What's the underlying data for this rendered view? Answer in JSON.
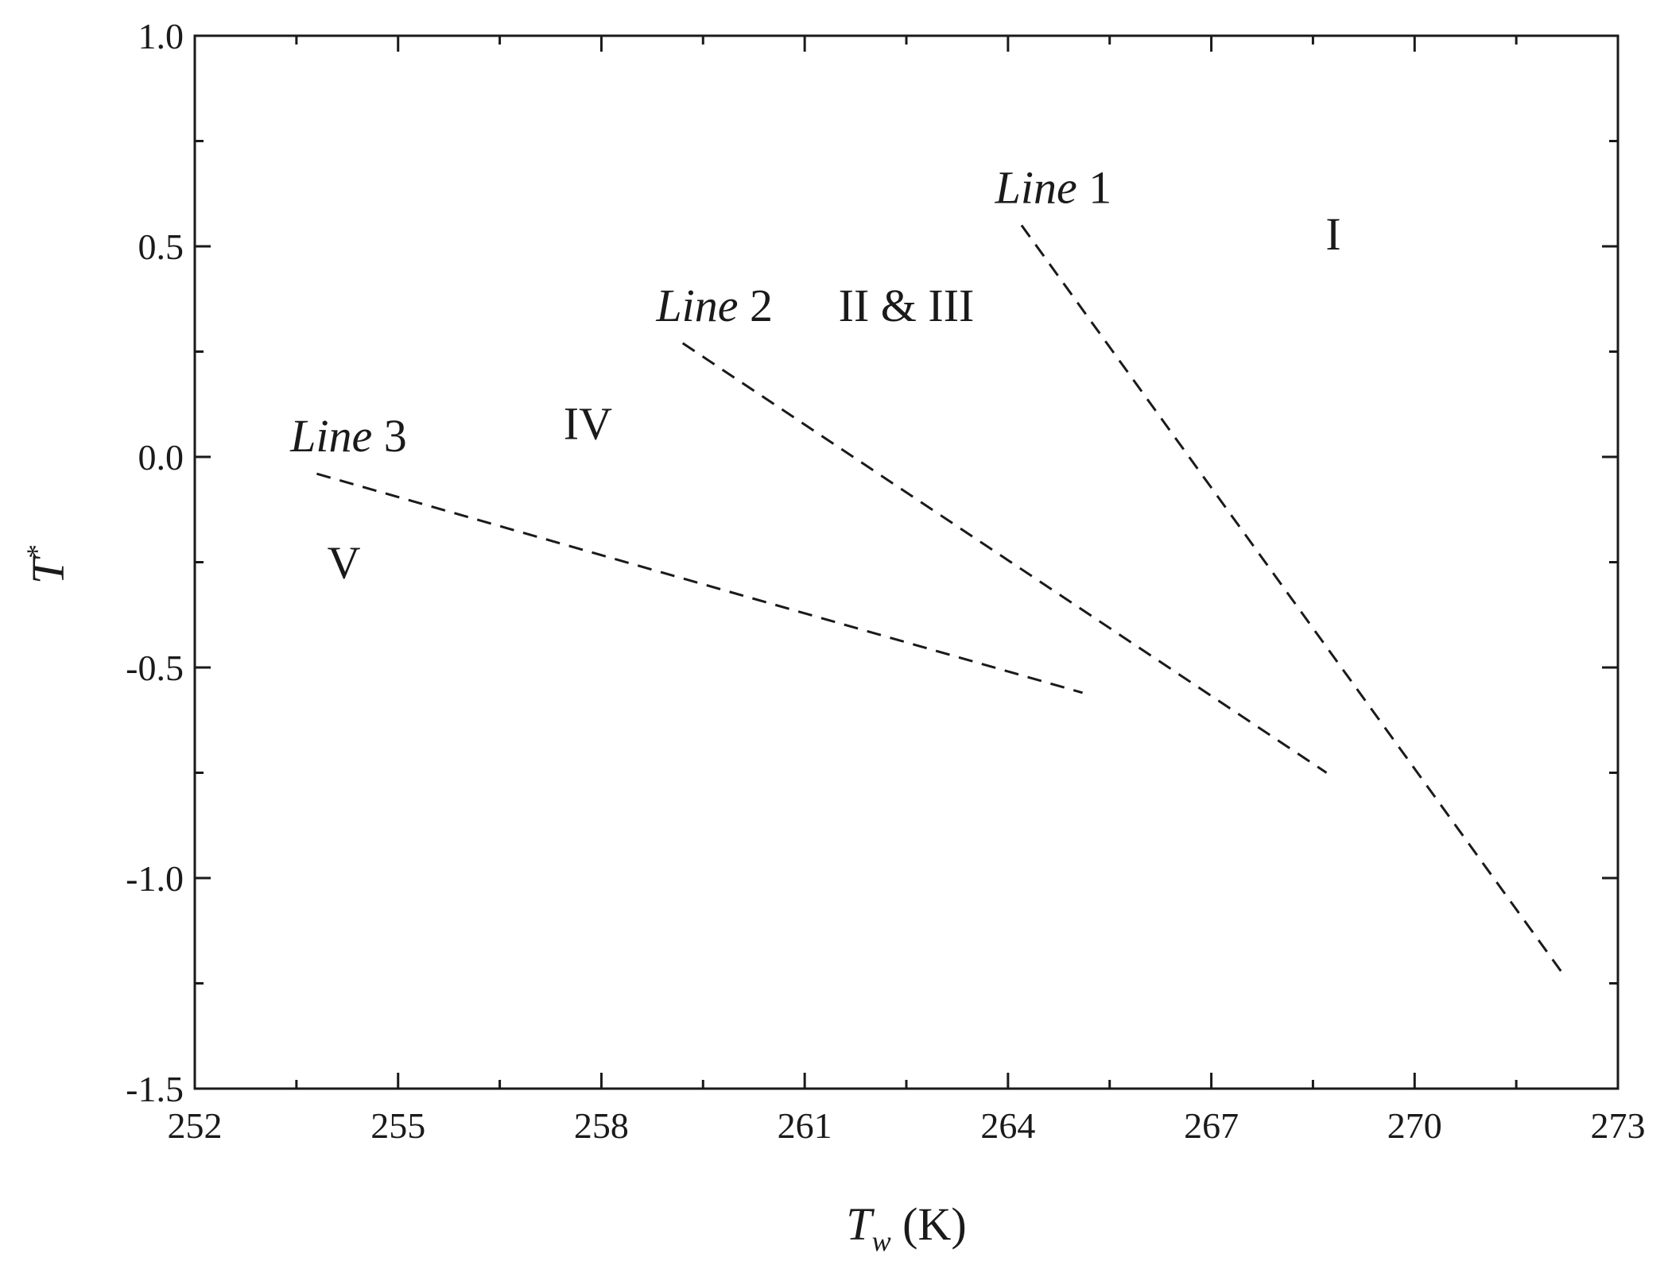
{
  "chart_data": {
    "type": "line",
    "title": "",
    "xlabel": {
      "symbol": "T",
      "subscript": "w",
      "unit": " (K)"
    },
    "ylabel": {
      "symbol": "T",
      "superscript": "*"
    },
    "xlim": [
      252,
      273
    ],
    "ylim": [
      -1.5,
      1.0
    ],
    "x_ticks": [
      "252",
      "255",
      "258",
      "261",
      "264",
      "267",
      "270",
      "273"
    ],
    "y_ticks": [
      "1.0",
      "0.5",
      "0.0",
      "-0.5",
      "-1.0",
      "-1.5"
    ],
    "grid": false,
    "series": [
      {
        "name": "Line 1",
        "label_prefix": "Line",
        "label_number": " 1",
        "x": [
          264.2,
          272.2
        ],
        "y": [
          0.55,
          -1.23
        ]
      },
      {
        "name": "Line 2",
        "label_prefix": "Line",
        "label_number": " 2",
        "x": [
          259.2,
          268.7
        ],
        "y": [
          0.27,
          -0.75
        ]
      },
      {
        "name": "Line 3",
        "label_prefix": "Line",
        "label_number": " 3",
        "x": [
          253.8,
          265.1
        ],
        "y": [
          -0.04,
          -0.56
        ]
      }
    ],
    "regions": [
      {
        "label": "I",
        "x": 268.8,
        "y": 0.53
      },
      {
        "label": "II & III",
        "x": 262.5,
        "y": 0.36
      },
      {
        "label": "IV",
        "x": 257.8,
        "y": 0.08
      },
      {
        "label": "V",
        "x": 254.2,
        "y": -0.25
      }
    ]
  }
}
